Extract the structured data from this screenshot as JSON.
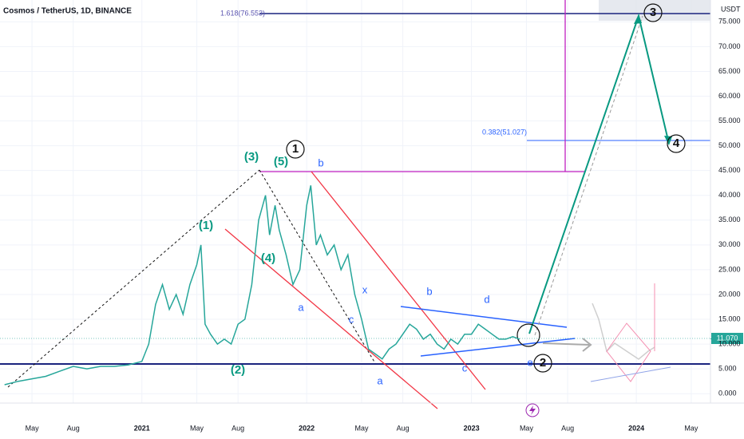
{
  "chart_data": {
    "type": "line",
    "title": "Cosmos / TetherUS, 1D, BINANCE",
    "currency": "USDT",
    "color": "#26a69a",
    "x": [
      2,
      3,
      4,
      5,
      6,
      7,
      8,
      9,
      10,
      11,
      12,
      12.5,
      13,
      13.5,
      14,
      14.5,
      15,
      15.5,
      16,
      16.3,
      16.6,
      17,
      17.5,
      18,
      18.5,
      19,
      19.5,
      20,
      20.5,
      21,
      21.3,
      21.7,
      22,
      22.5,
      23,
      23.5,
      24,
      24.3,
      24.7,
      25,
      25.5,
      26,
      26.5,
      27,
      27.5,
      28,
      28.5,
      29,
      29.5,
      30,
      30.5,
      31,
      31.5,
      32,
      32.5,
      33,
      33.5,
      34,
      34.5,
      35,
      35.5,
      36,
      36.5,
      37,
      37.5,
      38,
      38.5,
      39,
      39.5
    ],
    "values": [
      1.8,
      2.5,
      3.0,
      3.5,
      4.5,
      5.5,
      5.0,
      5.5,
      5.5,
      5.8,
      6.5,
      10,
      18,
      22,
      17,
      20,
      16,
      22,
      26,
      30,
      14,
      12,
      10,
      11,
      10,
      14,
      15,
      22,
      35,
      40,
      32,
      38,
      33,
      28,
      22,
      25,
      38,
      42,
      30,
      32,
      28,
      30,
      25,
      28,
      20,
      15,
      9,
      8,
      7,
      9,
      10,
      12,
      14,
      13,
      11,
      12,
      10,
      9,
      11,
      10,
      12,
      12,
      14,
      13,
      12,
      11,
      11,
      11.5,
      11
    ],
    "xlim": [
      1.67,
      53.4
    ],
    "xticks": [
      {
        "value": 4,
        "label": "May"
      },
      {
        "value": 7,
        "label": "Aug"
      },
      {
        "value": 12,
        "label": "2021"
      },
      {
        "value": 16,
        "label": "May"
      },
      {
        "value": 19,
        "label": "Aug"
      },
      {
        "value": 24,
        "label": "2022"
      },
      {
        "value": 28,
        "label": "May"
      },
      {
        "value": 31,
        "label": "Aug"
      },
      {
        "value": 36,
        "label": "2023"
      },
      {
        "value": 40,
        "label": "May"
      },
      {
        "value": 43,
        "label": "Aug"
      },
      {
        "value": 48,
        "label": "2024"
      },
      {
        "value": 52,
        "label": "May"
      }
    ],
    "ylim": [
      -1.9,
      79.4
    ],
    "yticks": [
      {
        "value": 0,
        "label": "0.000"
      },
      {
        "value": 5,
        "label": "5.000"
      },
      {
        "value": 10,
        "label": "10.000"
      },
      {
        "value": 15,
        "label": "15.000"
      },
      {
        "value": 20,
        "label": "20.000"
      },
      {
        "value": 25,
        "label": "25.000"
      },
      {
        "value": 30,
        "label": "30.000"
      },
      {
        "value": 35,
        "label": "35.000"
      },
      {
        "value": 40,
        "label": "40.000"
      },
      {
        "value": 45,
        "label": "45.000"
      },
      {
        "value": 50,
        "label": "50.000"
      },
      {
        "value": 55,
        "label": "55.000"
      },
      {
        "value": 60,
        "label": "60.000"
      },
      {
        "value": 65,
        "label": "65.000"
      },
      {
        "value": 70,
        "label": "70.000"
      },
      {
        "value": 75,
        "label": "75.000"
      }
    ],
    "grid": true,
    "last_price": {
      "value": 11.07,
      "label": "11.070"
    },
    "annotations": [
      "(3)",
      "(5)",
      "1",
      "b",
      "(1)",
      "(4)",
      "a",
      "c",
      "x",
      "b",
      "d",
      "c",
      "a",
      "(2)",
      "e",
      "2",
      "3",
      "4",
      "1.618(76.553)",
      "0.382(51.027)"
    ]
  }
}
